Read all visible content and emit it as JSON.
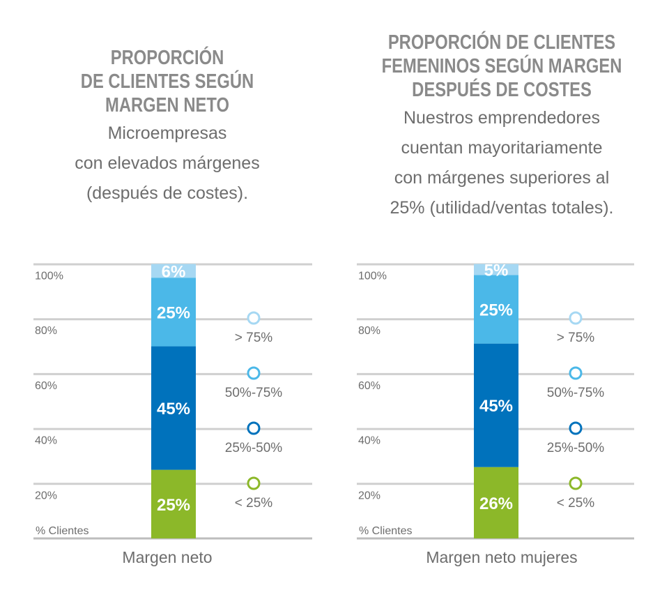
{
  "chart_data": [
    {
      "type": "bar",
      "stacked": true,
      "title": "PROPORCIÓN\nDE CLIENTES SEGÚN\nMARGEN NETO",
      "subtitle": "Microempresas\ncon elevados márgenes\n(después de costes).",
      "xlabel": "Margen neto",
      "ylabel": "% Clientes",
      "yticks": [
        "20%",
        "40%",
        "60%",
        "80%",
        "100%"
      ],
      "ylim": [
        0,
        100
      ],
      "grid": true,
      "series": [
        {
          "name": "< 25%",
          "value": 25,
          "label": "25%",
          "color": "#8cb829"
        },
        {
          "name": "25%-50%",
          "value": 45,
          "label": "45%",
          "color": "#0072bc"
        },
        {
          "name": "50%-75%",
          "value": 25,
          "label": "25%",
          "color": "#4bb8e8"
        },
        {
          "name": "> 75%",
          "value": 6,
          "label": "6%",
          "color": "#a6d8f3"
        }
      ],
      "legend": [
        {
          "label": "> 75%",
          "color": "#a6d8f3"
        },
        {
          "label": "50%-75%",
          "color": "#4bb8e8"
        },
        {
          "label": "25%-50%",
          "color": "#0072bc"
        },
        {
          "label": "< 25%",
          "color": "#8cb829"
        }
      ]
    },
    {
      "type": "bar",
      "stacked": true,
      "title": "PROPORCIÓN DE CLIENTES\nFEMENINOS SEGÚN MARGEN\nDESPUÉS DE COSTES",
      "subtitle": "Nuestros emprendedores\ncuentan mayoritariamente\ncon márgenes superiores al\n25% (utilidad/ventas totales).",
      "xlabel": "Margen neto mujeres",
      "ylabel": "% Clientes",
      "yticks": [
        "20%",
        "40%",
        "60%",
        "80%",
        "100%"
      ],
      "ylim": [
        0,
        100
      ],
      "grid": true,
      "series": [
        {
          "name": "< 25%",
          "value": 26,
          "label": "26%",
          "color": "#8cb829"
        },
        {
          "name": "25%-50%",
          "value": 45,
          "label": "45%",
          "color": "#0072bc"
        },
        {
          "name": "50%-75%",
          "value": 25,
          "label": "25%",
          "color": "#4bb8e8"
        },
        {
          "name": "> 75%",
          "value": 5,
          "label": "5%",
          "color": "#a6d8f3"
        }
      ],
      "legend": [
        {
          "label": "> 75%",
          "color": "#a6d8f3"
        },
        {
          "label": "50%-75%",
          "color": "#4bb8e8"
        },
        {
          "label": "25%-50%",
          "color": "#0072bc"
        },
        {
          "label": "< 25%",
          "color": "#8cb829"
        }
      ]
    }
  ]
}
